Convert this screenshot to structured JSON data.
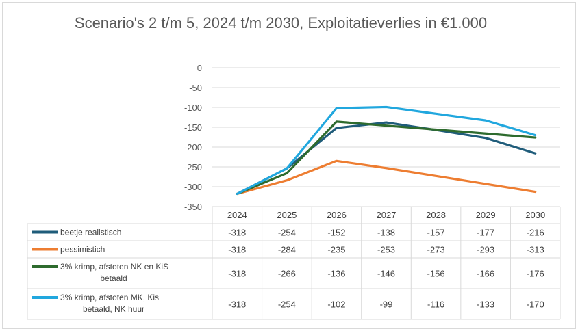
{
  "chart_data": {
    "type": "line",
    "title": "Scenario's 2 t/m 5, 2024 t/m 2030, Exploitatieverlies in €1.000",
    "categories": [
      "2024",
      "2025",
      "2026",
      "2027",
      "2028",
      "2029",
      "2030"
    ],
    "ylim": [
      -350,
      0
    ],
    "yticks": [
      "0",
      "-50",
      "-100",
      "-150",
      "-200",
      "-250",
      "-300",
      "-350"
    ],
    "grid": true,
    "legend": "data-table",
    "series": [
      {
        "name": "beetje realistisch",
        "color": "#1f5c7a",
        "values": [
          -318,
          -254,
          -152,
          -138,
          -157,
          -177,
          -216
        ],
        "labels": [
          "-318",
          "-254",
          "-152",
          "-138",
          "-157",
          "-177",
          "-216"
        ]
      },
      {
        "name": "pessimistich",
        "color": "#ed7d31",
        "values": [
          -318,
          -284,
          -235,
          -253,
          -273,
          -293,
          -313
        ],
        "labels": [
          "-318",
          "-284",
          "-235",
          "-253",
          "-273",
          "-293",
          "-313"
        ]
      },
      {
        "name": "3% krimp,  afstoten NK en KiS betaald",
        "color": "#2e6b2e",
        "values": [
          -318,
          -266,
          -136,
          -146,
          -156,
          -166,
          -176
        ],
        "labels": [
          "-318",
          "-266",
          "-136",
          "-146",
          "-156",
          "-166",
          "-176"
        ]
      },
      {
        "name": "3% krimp,  afstoten MK, Kis betaald, NK huur",
        "color": "#21a7de",
        "values": [
          -318,
          -254,
          -102,
          -99,
          -116,
          -133,
          -170
        ],
        "labels": [
          "-318",
          "-254",
          "-102",
          "-99",
          "-116",
          "-133",
          "-170"
        ]
      }
    ]
  }
}
